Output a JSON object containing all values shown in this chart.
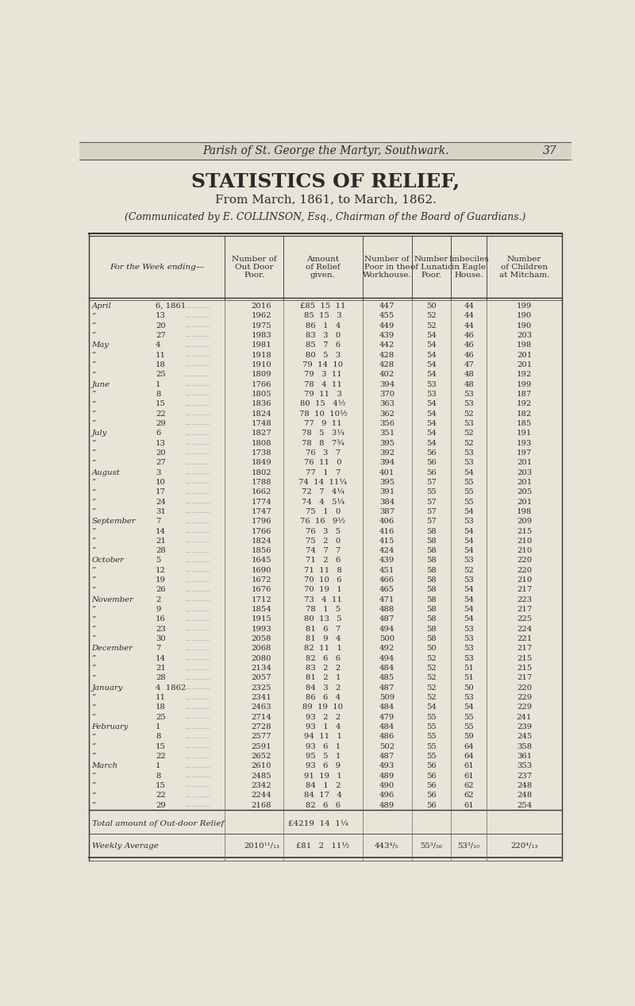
{
  "page_header": "Parish of St. George the Martyr, Southwark.",
  "page_number": "37",
  "title": "STATISTICS OF RELIEF,",
  "subtitle": "From March, 1861, to March, 1862.",
  "communicated": "(Communicated by E. COLLINSON, Esq., Chairman of the Board of Guardians.)",
  "col_headers": [
    "For the Week ending—",
    "Number of\nOut Door\nPoor.",
    "Amount\nof Relief\ngiven.",
    "Number of\nPoor in the\nWorkhouse.",
    "Number\nof Lunatic\nPoor.",
    "Imbeciles\nin Eagle\nHouse.",
    "Number\nof Children\nat Mitcham."
  ],
  "rows": [
    [
      "April",
      "6, 1861",
      "2016",
      "£85  15  11",
      "447",
      "50",
      "44",
      "199"
    ],
    [
      "”",
      "13",
      "1962",
      "85  15   3",
      "455",
      "52",
      "44",
      "190"
    ],
    [
      "”",
      "20",
      "1975",
      "86   1   4",
      "449",
      "52",
      "44",
      "190"
    ],
    [
      "”",
      "27",
      "1983",
      "83   3   0",
      "439",
      "54",
      "46",
      "203"
    ],
    [
      "May",
      "4",
      "1981",
      "85   7   6",
      "442",
      "54",
      "46",
      "198"
    ],
    [
      "”",
      "11",
      "1918",
      "80   5   3",
      "428",
      "54",
      "46",
      "201"
    ],
    [
      "”",
      "18",
      "1910",
      "79  14  10",
      "428",
      "54",
      "47",
      "201"
    ],
    [
      "”",
      "25",
      "1809",
      "79   3  11",
      "402",
      "54",
      "48",
      "192"
    ],
    [
      "June",
      "1",
      "1766",
      "78   4  11",
      "394",
      "53",
      "48",
      "199"
    ],
    [
      "”",
      "8",
      "1805",
      "79  11   3",
      "370",
      "53",
      "53",
      "187"
    ],
    [
      "”",
      "15",
      "1836",
      "80  15   4½",
      "363",
      "54",
      "53",
      "192"
    ],
    [
      "”",
      "22",
      "1824",
      "78  10  10½",
      "362",
      "54",
      "52",
      "182"
    ],
    [
      "”",
      "29",
      "1748",
      "77   9  11",
      "356",
      "54",
      "53",
      "185"
    ],
    [
      "July",
      "6",
      "1827",
      "78   5   3¼",
      "351",
      "54",
      "52",
      "191"
    ],
    [
      "”",
      "13",
      "1808",
      "78   8   7¾",
      "395",
      "54",
      "52",
      "193"
    ],
    [
      "”",
      "20",
      "1738",
      "76   3   7",
      "392",
      "56",
      "53",
      "197"
    ],
    [
      "”",
      "27",
      "1849",
      "76  11   0",
      "394",
      "56",
      "53",
      "201"
    ],
    [
      "August",
      "3",
      "1802",
      "77   1   7",
      "401",
      "56",
      "54",
      "203"
    ],
    [
      "”",
      "10",
      "1788",
      "74  14  11¼",
      "395",
      "57",
      "55",
      "201"
    ],
    [
      "”",
      "17",
      "1662",
      "72   7   4¼",
      "391",
      "55",
      "55",
      "205"
    ],
    [
      "”",
      "24",
      "1774",
      "74   4   5¼",
      "384",
      "57",
      "55",
      "201"
    ],
    [
      "”",
      "31",
      "1747",
      "75   1   0",
      "387",
      "57",
      "54",
      "198"
    ],
    [
      "September",
      "7",
      "1796",
      "76  16   9½",
      "406",
      "57",
      "53",
      "209"
    ],
    [
      "”",
      "14",
      "1766",
      "76   3   5",
      "416",
      "58",
      "54",
      "215"
    ],
    [
      "”",
      "21",
      "1824",
      "75   2   0",
      "415",
      "58",
      "54",
      "210"
    ],
    [
      "”",
      "28",
      "1856",
      "74   7   7",
      "424",
      "58",
      "54",
      "210"
    ],
    [
      "October",
      "5",
      "1645",
      "71   2   6",
      "439",
      "58",
      "53",
      "220"
    ],
    [
      "”",
      "12",
      "1690",
      "71  11   8",
      "451",
      "58",
      "52",
      "220"
    ],
    [
      "”",
      "19",
      "1672",
      "70  10   6",
      "466",
      "58",
      "53",
      "210"
    ],
    [
      "”",
      "26",
      "1676",
      "70  19   1",
      "465",
      "58",
      "54",
      "217"
    ],
    [
      "November",
      "2",
      "1712",
      "73   4  11",
      "471",
      "58",
      "54",
      "223"
    ],
    [
      "”",
      "9",
      "1854",
      "78   1   5",
      "488",
      "58",
      "54",
      "217"
    ],
    [
      "”",
      "16",
      "1915",
      "80  13   5",
      "487",
      "58",
      "54",
      "225"
    ],
    [
      "”",
      "23",
      "1993",
      "81   6   7",
      "494",
      "58",
      "53",
      "224"
    ],
    [
      "”",
      "30",
      "2058",
      "81   9   4",
      "500",
      "58",
      "53",
      "221"
    ],
    [
      "December",
      "7",
      "2068",
      "82  11   1",
      "492",
      "50",
      "53",
      "217"
    ],
    [
      "”",
      "14",
      "2080",
      "82   6   6",
      "494",
      "52",
      "53",
      "215"
    ],
    [
      "”",
      "21",
      "2134",
      "83   2   2",
      "484",
      "52",
      "51",
      "215"
    ],
    [
      "”",
      "28",
      "2057",
      "81   2   1",
      "485",
      "52",
      "51",
      "217"
    ],
    [
      "January",
      "4  1862",
      "2325",
      "84   3   2",
      "487",
      "52",
      "50",
      "220"
    ],
    [
      "”",
      "11",
      "2341",
      "86   6   4",
      "509",
      "52",
      "53",
      "229"
    ],
    [
      "”",
      "18",
      "2463",
      "89  19  10",
      "484",
      "54",
      "54",
      "229"
    ],
    [
      "”",
      "25",
      "2714",
      "93   2   2",
      "479",
      "55",
      "55",
      "241"
    ],
    [
      "February",
      "1",
      "2728",
      "93   1   4",
      "484",
      "55",
      "55",
      "239"
    ],
    [
      "”",
      "8",
      "2577",
      "94  11   1",
      "486",
      "55",
      "59",
      "245"
    ],
    [
      "”",
      "15",
      "2591",
      "93   6   1",
      "502",
      "55",
      "64",
      "358"
    ],
    [
      "”",
      "22",
      "2652",
      "95   5   1",
      "487",
      "55",
      "64",
      "361"
    ],
    [
      "March",
      "1",
      "2610",
      "93   6   9",
      "493",
      "56",
      "61",
      "353"
    ],
    [
      "”",
      "8",
      "2485",
      "91  19   1",
      "489",
      "56",
      "61",
      "237"
    ],
    [
      "”",
      "15",
      "2342",
      "84   1   2",
      "490",
      "56",
      "62",
      "248"
    ],
    [
      "”",
      "22",
      "2244",
      "84  17   4",
      "496",
      "56",
      "62",
      "248"
    ],
    [
      "”",
      "29",
      "2168",
      "82   6   6",
      "489",
      "56",
      "61",
      "254"
    ]
  ],
  "total_label": "Total amount of Out-door Relief",
  "total_value": "£4219  14  1¼",
  "weekly_avg_label": "Weekly Average",
  "weekly_avg_values": [
    "2010¹¹/₁₃",
    "£81   2   11½",
    "443⁴/₅",
    "55³/₂₆",
    "53³/₁₀",
    "220⁴/₁₃"
  ],
  "bg_color": "#e8e4d8",
  "text_color": "#2a2a2a"
}
